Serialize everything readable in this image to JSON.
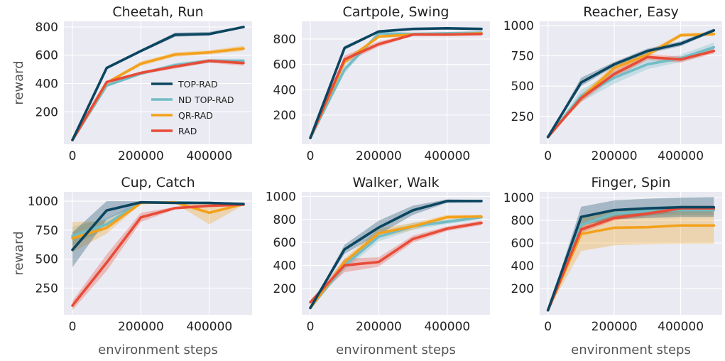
{
  "colors": {
    "TOP-RAD": "#0b4560",
    "ND TOP-RAD": "#72bcc5",
    "QR-RAD": "#f3a11c",
    "RAD": "#e84b37"
  },
  "legend": {
    "placement": "inside first panel, lower-right",
    "entries": [
      "TOP-RAD",
      "ND TOP-RAD",
      "QR-RAD",
      "RAD"
    ]
  },
  "chart_data": [
    {
      "type": "line",
      "title": "Cheetah, Run",
      "ylabel": "reward",
      "xlabel": "",
      "x": [
        0,
        100000,
        200000,
        300000,
        400000,
        500000
      ],
      "xticks": [
        0,
        200000,
        400000
      ],
      "yticks": [
        200,
        400,
        600,
        800
      ],
      "xlim": [
        -25000,
        525000
      ],
      "ylim": [
        -30,
        840
      ],
      "grid": true,
      "series": [
        {
          "name": "TOP-RAD",
          "values": [
            0,
            510,
            630,
            745,
            750,
            800
          ],
          "lower": [
            0,
            500,
            620,
            730,
            740,
            795
          ],
          "upper": [
            0,
            520,
            640,
            760,
            765,
            805
          ]
        },
        {
          "name": "ND TOP-RAD",
          "values": [
            0,
            385,
            470,
            530,
            560,
            560
          ],
          "lower": [
            0,
            375,
            460,
            515,
            545,
            545
          ],
          "upper": [
            0,
            395,
            480,
            545,
            575,
            575
          ]
        },
        {
          "name": "QR-RAD",
          "values": [
            0,
            405,
            540,
            605,
            620,
            648
          ],
          "lower": [
            0,
            395,
            525,
            590,
            605,
            630
          ],
          "upper": [
            0,
            415,
            555,
            620,
            635,
            668
          ]
        },
        {
          "name": "RAD",
          "values": [
            0,
            410,
            475,
            520,
            560,
            545
          ],
          "lower": [
            0,
            400,
            465,
            505,
            548,
            525
          ],
          "upper": [
            0,
            420,
            485,
            535,
            572,
            565
          ]
        }
      ]
    },
    {
      "type": "line",
      "title": "Cartpole, Swing",
      "ylabel": "",
      "xlabel": "",
      "x": [
        0,
        100000,
        200000,
        300000,
        400000,
        500000
      ],
      "xticks": [
        0,
        200000,
        400000
      ],
      "yticks": [
        200,
        400,
        600,
        800
      ],
      "xlim": [
        -25000,
        525000
      ],
      "ylim": [
        -30,
        940
      ],
      "grid": true,
      "series": [
        {
          "name": "TOP-RAD",
          "values": [
            20,
            730,
            860,
            880,
            885,
            880
          ],
          "lower": [
            20,
            715,
            850,
            873,
            878,
            873
          ],
          "upper": [
            20,
            745,
            868,
            887,
            892,
            887
          ]
        },
        {
          "name": "ND TOP-RAD",
          "values": [
            20,
            560,
            845,
            840,
            845,
            850
          ],
          "lower": [
            20,
            530,
            835,
            830,
            835,
            840
          ],
          "upper": [
            20,
            590,
            855,
            850,
            855,
            860
          ]
        },
        {
          "name": "QR-RAD",
          "values": [
            20,
            620,
            820,
            835,
            835,
            845
          ],
          "lower": [
            20,
            600,
            810,
            825,
            825,
            835
          ],
          "upper": [
            20,
            640,
            830,
            845,
            845,
            855
          ]
        },
        {
          "name": "RAD",
          "values": [
            20,
            640,
            760,
            835,
            835,
            840
          ],
          "lower": [
            20,
            610,
            740,
            825,
            825,
            830
          ],
          "upper": [
            20,
            670,
            780,
            845,
            845,
            850
          ]
        }
      ]
    },
    {
      "type": "line",
      "title": "Reacher, Easy",
      "ylabel": "",
      "xlabel": "",
      "x": [
        0,
        100000,
        200000,
        300000,
        400000,
        500000
      ],
      "xticks": [
        0,
        200000,
        400000
      ],
      "yticks": [
        250,
        500,
        750,
        1000
      ],
      "xlim": [
        -25000,
        525000
      ],
      "ylim": [
        20,
        1035
      ],
      "grid": true,
      "series": [
        {
          "name": "TOP-RAD",
          "values": [
            80,
            530,
            680,
            790,
            850,
            960
          ],
          "lower": [
            80,
            500,
            660,
            770,
            830,
            950
          ],
          "upper": [
            80,
            570,
            700,
            810,
            870,
            975
          ]
        },
        {
          "name": "ND TOP-RAD",
          "values": [
            80,
            420,
            570,
            680,
            730,
            820
          ],
          "lower": [
            80,
            370,
            520,
            640,
            700,
            780
          ],
          "upper": [
            80,
            470,
            620,
            720,
            760,
            860
          ]
        },
        {
          "name": "QR-RAD",
          "values": [
            80,
            400,
            650,
            760,
            920,
            930
          ],
          "lower": [
            80,
            370,
            620,
            735,
            905,
            915
          ],
          "upper": [
            80,
            430,
            680,
            785,
            935,
            945
          ]
        },
        {
          "name": "RAD",
          "values": [
            80,
            400,
            600,
            740,
            720,
            790
          ],
          "lower": [
            80,
            370,
            570,
            715,
            695,
            770
          ],
          "upper": [
            80,
            430,
            630,
            765,
            745,
            810
          ]
        }
      ]
    },
    {
      "type": "line",
      "title": "Cup, Catch",
      "ylabel": "reward",
      "xlabel": "environment steps",
      "x": [
        0,
        100000,
        200000,
        300000,
        400000,
        500000
      ],
      "xticks": [
        0,
        200000,
        400000
      ],
      "yticks": [
        250,
        500,
        750,
        1000
      ],
      "xlim": [
        -25000,
        525000
      ],
      "ylim": [
        20,
        1080
      ],
      "grid": true,
      "series": [
        {
          "name": "TOP-RAD",
          "values": [
            580,
            920,
            990,
            985,
            985,
            975
          ],
          "lower": [
            430,
            840,
            980,
            975,
            975,
            965
          ],
          "upper": [
            730,
            1000,
            1000,
            995,
            995,
            985
          ]
        },
        {
          "name": "ND TOP-RAD",
          "values": [
            700,
            800,
            990,
            990,
            985,
            975
          ],
          "lower": [
            620,
            760,
            980,
            980,
            975,
            965
          ],
          "upper": [
            780,
            850,
            1000,
            1000,
            995,
            985
          ]
        },
        {
          "name": "QR-RAD",
          "values": [
            680,
            770,
            985,
            990,
            900,
            975
          ],
          "lower": [
            560,
            720,
            975,
            980,
            800,
            965
          ],
          "upper": [
            820,
            830,
            995,
            1000,
            980,
            985
          ]
        },
        {
          "name": "RAD",
          "values": [
            100,
            470,
            860,
            940,
            960,
            970
          ],
          "lower": [
            60,
            400,
            820,
            930,
            950,
            960
          ],
          "upper": [
            140,
            540,
            900,
            950,
            970,
            980
          ]
        }
      ]
    },
    {
      "type": "line",
      "title": "Walker, Walk",
      "ylabel": "",
      "xlabel": "environment steps",
      "x": [
        0,
        100000,
        200000,
        300000,
        400000,
        500000
      ],
      "xticks": [
        0,
        200000,
        400000
      ],
      "yticks": [
        200,
        400,
        600,
        800,
        1000
      ],
      "xlim": [
        -25000,
        525000
      ],
      "ylim": [
        -30,
        1040
      ],
      "grid": true,
      "series": [
        {
          "name": "TOP-RAD",
          "values": [
            30,
            540,
            730,
            880,
            960,
            960
          ],
          "lower": [
            30,
            500,
            670,
            840,
            945,
            950
          ],
          "upper": [
            30,
            580,
            790,
            920,
            975,
            970
          ]
        },
        {
          "name": "ND TOP-RAD",
          "values": [
            30,
            400,
            650,
            740,
            780,
            820
          ],
          "lower": [
            30,
            360,
            610,
            710,
            760,
            800
          ],
          "upper": [
            30,
            440,
            690,
            770,
            800,
            840
          ]
        },
        {
          "name": "QR-RAD",
          "values": [
            30,
            430,
            680,
            740,
            820,
            825
          ],
          "lower": [
            30,
            400,
            640,
            710,
            800,
            810
          ],
          "upper": [
            30,
            460,
            720,
            770,
            840,
            840
          ]
        },
        {
          "name": "RAD",
          "values": [
            80,
            400,
            430,
            630,
            720,
            770
          ],
          "lower": [
            80,
            340,
            390,
            600,
            700,
            750
          ],
          "upper": [
            80,
            460,
            470,
            660,
            740,
            790
          ]
        }
      ]
    },
    {
      "type": "line",
      "title": "Finger, Spin",
      "ylabel": "",
      "xlabel": "environment steps",
      "x": [
        0,
        100000,
        200000,
        300000,
        400000,
        500000
      ],
      "xticks": [
        0,
        200000,
        400000
      ],
      "yticks": [
        200,
        400,
        600,
        800,
        1000
      ],
      "xlim": [
        -25000,
        525000
      ],
      "ylim": [
        -30,
        1050
      ],
      "grid": true,
      "series": [
        {
          "name": "TOP-RAD",
          "values": [
            10,
            830,
            890,
            905,
            915,
            915
          ],
          "lower": [
            10,
            760,
            810,
            820,
            830,
            830
          ],
          "upper": [
            10,
            920,
            975,
            990,
            1000,
            1005
          ]
        },
        {
          "name": "ND TOP-RAD",
          "values": [
            10,
            760,
            860,
            880,
            890,
            890
          ],
          "lower": [
            10,
            700,
            820,
            840,
            850,
            850
          ],
          "upper": [
            10,
            830,
            900,
            920,
            930,
            930
          ]
        },
        {
          "name": "QR-RAD",
          "values": [
            10,
            680,
            735,
            740,
            755,
            755
          ],
          "lower": [
            10,
            530,
            580,
            590,
            595,
            595
          ],
          "upper": [
            10,
            820,
            890,
            890,
            900,
            900
          ]
        },
        {
          "name": "RAD",
          "values": [
            10,
            720,
            820,
            860,
            905,
            905
          ],
          "lower": [
            10,
            690,
            800,
            840,
            880,
            880
          ],
          "upper": [
            10,
            750,
            840,
            880,
            930,
            930
          ]
        }
      ]
    }
  ]
}
